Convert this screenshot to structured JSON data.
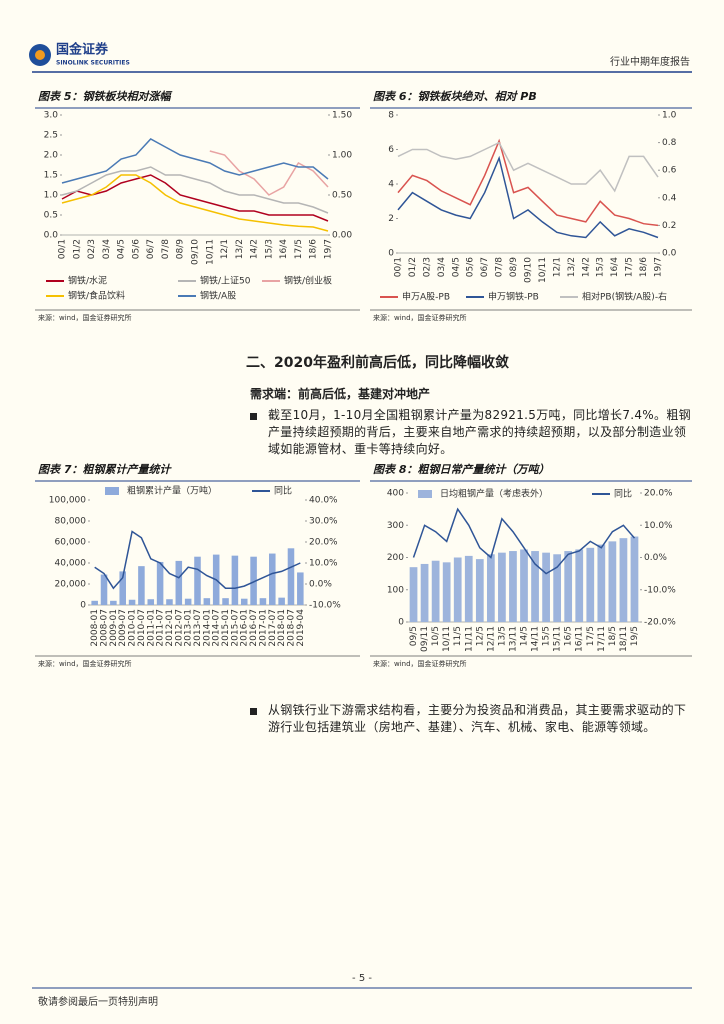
{
  "header": {
    "logo_name": "国金证券",
    "logo_en": "SINOLINK SECURITIES",
    "report_type": "行业中期年度报告"
  },
  "section": "二、2020年盈利前高后低，同比降幅收敛",
  "subsection": "需求端：前高后低，基建对冲地产",
  "paragraphs": [
    "截至10月，1-10月全国粗钢累计产量为82921.5万吨，同比增长7.4%。粗钢产量持续超预期的背后，主要来自地产需求的持续超预期，以及部分制造业领域如能源管材、重卡等持续向好。",
    "从钢铁行业下游需求结构看，主要分为投资品和消费品，其主要需求驱动的下游行业包括建筑业（房地产、基建）、汽车、机械、家电、能源等领域。"
  ],
  "footer": {
    "page": "- 5 -",
    "note": "敬请参阅最后一页特别声明"
  },
  "chart_data": [
    {
      "type": "line",
      "title": "图表 5：钢铁板块相对涨幅",
      "source": "来源：wind，国金证券研究所",
      "categories": [
        "00/1",
        "01/2",
        "02/3",
        "03/4",
        "04/5",
        "05/6",
        "06/7",
        "07/8",
        "08/9",
        "09/10",
        "10/11",
        "12/1",
        "13/2",
        "14/2",
        "15/3",
        "16/4",
        "17/5",
        "18/6",
        "19/7"
      ],
      "ylim": [
        0,
        3
      ],
      "yticks": [
        {
          "value": 0,
          "label": "0.0"
        },
        0.5,
        {
          "value": 1,
          "label": "1.0"
        },
        1.5,
        {
          "value": 2,
          "label": "2.0"
        },
        2.5,
        {
          "value": 3,
          "label": "3.0"
        }
      ],
      "y2lim": [
        0,
        1.5
      ],
      "y2ticks": [
        {
          "value": 0,
          "label": "0.00"
        },
        {
          "value": 0.5,
          "label": "0.50"
        },
        {
          "value": 1,
          "label": "1.00"
        },
        {
          "value": 1.5,
          "label": "1.50"
        }
      ],
      "series": [
        {
          "name": "钢铁/水泥",
          "color": "#b0001e",
          "values": [
            0.9,
            1.1,
            1.0,
            1.1,
            1.3,
            1.4,
            1.5,
            1.3,
            1.0,
            0.9,
            0.8,
            0.7,
            0.6,
            0.6,
            0.5,
            0.5,
            0.5,
            0.5,
            0.35
          ]
        },
        {
          "name": "钢铁/上证50",
          "color": "#b5b5b5",
          "values": [
            1.0,
            1.1,
            1.3,
            1.5,
            1.6,
            1.6,
            1.7,
            1.5,
            1.5,
            1.4,
            1.3,
            1.1,
            1.0,
            1.0,
            0.9,
            0.8,
            0.8,
            0.7,
            0.55
          ]
        },
        {
          "name": "钢铁/创业板",
          "color": "#e8a3a3",
          "axis": "y2",
          "values": [
            null,
            null,
            null,
            null,
            null,
            null,
            null,
            null,
            null,
            null,
            1.05,
            1.0,
            0.8,
            0.7,
            0.5,
            0.6,
            0.9,
            0.8,
            0.6
          ]
        },
        {
          "name": "钢铁/食品饮料",
          "color": "#f5c000",
          "values": [
            0.8,
            0.9,
            1.0,
            1.2,
            1.5,
            1.5,
            1.3,
            1.0,
            0.8,
            0.7,
            0.6,
            0.5,
            0.4,
            0.35,
            0.3,
            0.25,
            0.22,
            0.2,
            0.1
          ]
        },
        {
          "name": "钢铁/A股",
          "color": "#4a7ab5",
          "values": [
            1.3,
            1.4,
            1.5,
            1.6,
            1.9,
            2.0,
            2.4,
            2.2,
            2.0,
            1.9,
            1.8,
            1.6,
            1.5,
            1.6,
            1.7,
            1.8,
            1.7,
            1.7,
            1.4
          ]
        }
      ]
    },
    {
      "type": "line",
      "title": "图表 6：钢铁板块绝对、相对 PB",
      "source": "来源：wind，国金证券研究所",
      "categories": [
        "00/1",
        "01/2",
        "02/3",
        "03/4",
        "04/5",
        "05/6",
        "06/7",
        "07/8",
        "08/9",
        "09/10",
        "10/11",
        "12/1",
        "13/2",
        "14/2",
        "15/3",
        "16/4",
        "17/5",
        "18/6",
        "19/7"
      ],
      "ylim": [
        0,
        8
      ],
      "yticks": [
        0,
        2,
        4,
        6,
        8
      ],
      "y2lim": [
        0,
        1
      ],
      "y2ticks": [
        {
          "value": 0,
          "label": "0.0"
        },
        0.2,
        0.4,
        0.6,
        0.8,
        {
          "value": 1,
          "label": "1.0"
        }
      ],
      "series": [
        {
          "name": "申万A股-PB",
          "color": "#d9534f",
          "values": [
            3.5,
            4.5,
            4.2,
            3.6,
            3.2,
            2.8,
            4.5,
            6.5,
            3.5,
            3.8,
            3.0,
            2.2,
            2.0,
            1.8,
            3.0,
            2.2,
            2.0,
            1.7,
            1.6
          ]
        },
        {
          "name": "申万钢铁-PB",
          "color": "#2f5597",
          "values": [
            2.5,
            3.5,
            3.0,
            2.5,
            2.2,
            2.0,
            3.5,
            5.5,
            2.0,
            2.5,
            1.8,
            1.2,
            1.0,
            0.9,
            1.8,
            1.0,
            1.4,
            1.2,
            0.9
          ]
        },
        {
          "name": "相对PB(钢铁/A股)-右",
          "color": "#c0c0c0",
          "axis": "y2",
          "values": [
            0.7,
            0.75,
            0.75,
            0.7,
            0.68,
            0.7,
            0.75,
            0.8,
            0.6,
            0.65,
            0.6,
            0.55,
            0.5,
            0.5,
            0.6,
            0.45,
            0.7,
            0.7,
            0.55
          ]
        }
      ]
    },
    {
      "type": "bar",
      "title": "图表 7：粗钢累计产量统计",
      "source": "来源：wind，国金证券研究所",
      "categories": [
        "2008-01",
        "2008-07",
        "2009-01",
        "2009-07",
        "2010-01",
        "2010-07",
        "2011-01",
        "2011-07",
        "2012-01",
        "2012-07",
        "2013-01",
        "2013-07",
        "2014-01",
        "2014-07",
        "2015-01",
        "2015-07",
        "2016-01",
        "2016-07",
        "2017-01",
        "2017-07",
        "2018-01",
        "2018-07",
        "2019-04"
      ],
      "ylim": [
        0,
        100000
      ],
      "yticks": [
        0,
        {
          "value": 20000,
          "label": "20,000"
        },
        {
          "value": 40000,
          "label": "40,000"
        },
        {
          "value": 60000,
          "label": "60,000"
        },
        {
          "value": 80000,
          "label": "80,000"
        },
        {
          "value": 100000,
          "label": "100,000"
        }
      ],
      "y2lim": [
        -10,
        40
      ],
      "y2ticks": [
        {
          "value": -10,
          "label": "-10.0%"
        },
        {
          "value": 0,
          "label": "0.0%"
        },
        {
          "value": 10,
          "label": "10.0%"
        },
        {
          "value": 20,
          "label": "20.0%"
        },
        {
          "value": 30,
          "label": "30.0%"
        },
        {
          "value": 40,
          "label": "40.0%"
        }
      ],
      "series": [
        {
          "name": "粗钢累计产量（万吨）",
          "color": "#8eaadb",
          "type": "bar",
          "values": [
            4000,
            29000,
            4000,
            32000,
            5000,
            37000,
            5500,
            41000,
            5500,
            42000,
            6000,
            46000,
            6500,
            48000,
            6500,
            47000,
            6000,
            46000,
            6500,
            49000,
            7000,
            54000,
            31000
          ]
        },
        {
          "name": "同比",
          "color": "#2f5597",
          "type": "line",
          "axis": "y2",
          "values": [
            8,
            5,
            -2,
            3,
            25,
            22,
            12,
            10,
            5,
            3,
            8,
            7,
            4,
            2,
            -2,
            -2,
            -1,
            1,
            3,
            5,
            6,
            8,
            10
          ]
        }
      ]
    },
    {
      "type": "bar",
      "title": "图表 8：粗钢日常产量统计（万吨）",
      "source": "来源：wind，国金证券研究所",
      "categories": [
        "09/5",
        "09/11",
        "10/5",
        "10/11",
        "11/5",
        "11/11",
        "12/5",
        "12/11",
        "13/5",
        "13/11",
        "14/5",
        "14/11",
        "15/5",
        "15/11",
        "16/5",
        "16/11",
        "17/5",
        "17/11",
        "18/5",
        "18/11",
        "19/5"
      ],
      "ylim": [
        0,
        400
      ],
      "yticks": [
        0,
        100,
        200,
        300,
        400
      ],
      "y2lim": [
        -20,
        20
      ],
      "y2ticks": [
        {
          "value": -20,
          "label": "-20.0%"
        },
        {
          "value": -10,
          "label": "-10.0%"
        },
        {
          "value": 0,
          "label": "0.0%"
        },
        {
          "value": 10,
          "label": "10.0%"
        },
        {
          "value": 20,
          "label": "20.0%"
        }
      ],
      "series": [
        {
          "name": "日均粗钢产量（考虑表外）",
          "color": "#9db4dc",
          "type": "bar",
          "values": [
            170,
            180,
            190,
            185,
            200,
            205,
            195,
            210,
            215,
            220,
            225,
            220,
            215,
            210,
            220,
            225,
            230,
            240,
            250,
            260,
            265
          ]
        },
        {
          "name": "同比",
          "color": "#2f5597",
          "type": "line",
          "axis": "y2",
          "values": [
            0,
            10,
            8,
            5,
            15,
            10,
            3,
            0,
            12,
            8,
            3,
            -2,
            -5,
            -3,
            1,
            2,
            5,
            3,
            8,
            10,
            6
          ]
        }
      ]
    }
  ]
}
